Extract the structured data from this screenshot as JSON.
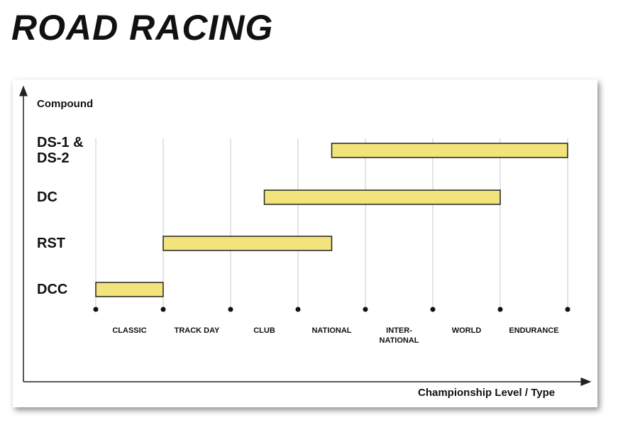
{
  "chart_data": {
    "type": "range-bar",
    "title": "ROAD RACING",
    "y_label": "Compound",
    "x_label": "Championship Level / Type",
    "categories": [
      "DCC",
      "RST",
      "DC",
      "DS-1 & DS-2"
    ],
    "starts": [
      0,
      1,
      2.5,
      3.5
    ],
    "ends": [
      1,
      3.5,
      6,
      7
    ],
    "color": "#f2e47a",
    "x_categories": [
      "CLASSIC",
      "TRACK DAY",
      "CLUB",
      "NATIONAL",
      "INTER-NATIONAL",
      "WORLD",
      "ENDURANCE"
    ],
    "xlim": [
      0,
      7
    ],
    "xticks": [
      0,
      1,
      2,
      3,
      4,
      5,
      6,
      7
    ],
    "grid": true
  }
}
